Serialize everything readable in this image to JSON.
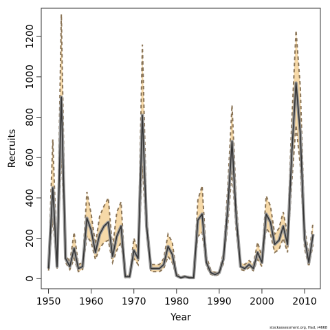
{
  "chart_data": {
    "type": "line",
    "title": "",
    "xlabel": "Year",
    "ylabel": "Recruits",
    "xlim": [
      1948.3,
      2013.7
    ],
    "ylim": [
      -50,
      1340
    ],
    "x_ticks": [
      1950,
      1960,
      1970,
      1980,
      1990,
      2000,
      2010
    ],
    "y_ticks": [
      0,
      200,
      400,
      600,
      800,
      1000,
      1200
    ],
    "grid": false,
    "legend": "none",
    "credit": "stockassessment.org, Had, r4668",
    "colors": {
      "band": "#f6d9a8",
      "line": "#333333",
      "line_halo": "#999999",
      "bound": "#8a7456"
    },
    "x": [
      1950,
      1951,
      1952,
      1953,
      1954,
      1955,
      1956,
      1957,
      1958,
      1959,
      1960,
      1961,
      1962,
      1963,
      1964,
      1965,
      1966,
      1967,
      1968,
      1969,
      1970,
      1971,
      1972,
      1973,
      1974,
      1975,
      1976,
      1977,
      1978,
      1979,
      1980,
      1981,
      1982,
      1983,
      1984,
      1985,
      1986,
      1987,
      1988,
      1989,
      1990,
      1991,
      1992,
      1993,
      1994,
      1995,
      1996,
      1997,
      1998,
      1999,
      2000,
      2001,
      2002,
      2003,
      2004,
      2005,
      2006,
      2007,
      2008,
      2009,
      2010,
      2011,
      2012
    ],
    "series": [
      {
        "values": [
          50,
          450,
          60,
          900,
          100,
          60,
          150,
          50,
          60,
          300,
          240,
          130,
          220,
          260,
          280,
          110,
          210,
          260,
          10,
          10,
          140,
          100,
          810,
          260,
          50,
          50,
          50,
          70,
          160,
          120,
          15,
          5,
          10,
          5,
          5,
          290,
          320,
          80,
          30,
          20,
          30,
          100,
          350,
          680,
          300,
          60,
          50,
          70,
          50,
          130,
          80,
          320,
          280,
          170,
          190,
          260,
          170,
          620,
          970,
          720,
          200,
          80,
          220
        ]
      },
      {
        "name": "upper",
        "values": [
          60,
          690,
          80,
          1310,
          120,
          80,
          230,
          70,
          80,
          430,
          320,
          170,
          310,
          360,
          400,
          150,
          330,
          380,
          20,
          20,
          200,
          140,
          1160,
          320,
          70,
          70,
          70,
          100,
          220,
          180,
          25,
          10,
          15,
          10,
          10,
          390,
          460,
          110,
          45,
          30,
          40,
          130,
          450,
          860,
          380,
          80,
          70,
          90,
          70,
          180,
          110,
          410,
          360,
          220,
          250,
          330,
          220,
          780,
          1230,
          950,
          260,
          110,
          280
        ]
      },
      {
        "name": "lower",
        "values": [
          40,
          300,
          45,
          630,
          80,
          45,
          100,
          35,
          45,
          210,
          180,
          95,
          150,
          180,
          190,
          80,
          140,
          180,
          5,
          5,
          100,
          70,
          560,
          210,
          35,
          35,
          35,
          50,
          110,
          80,
          10,
          3,
          6,
          3,
          3,
          210,
          230,
          60,
          22,
          14,
          22,
          75,
          270,
          540,
          230,
          45,
          40,
          55,
          40,
          95,
          60,
          250,
          220,
          130,
          145,
          200,
          130,
          480,
          760,
          560,
          150,
          60,
          170
        ]
      }
    ]
  }
}
